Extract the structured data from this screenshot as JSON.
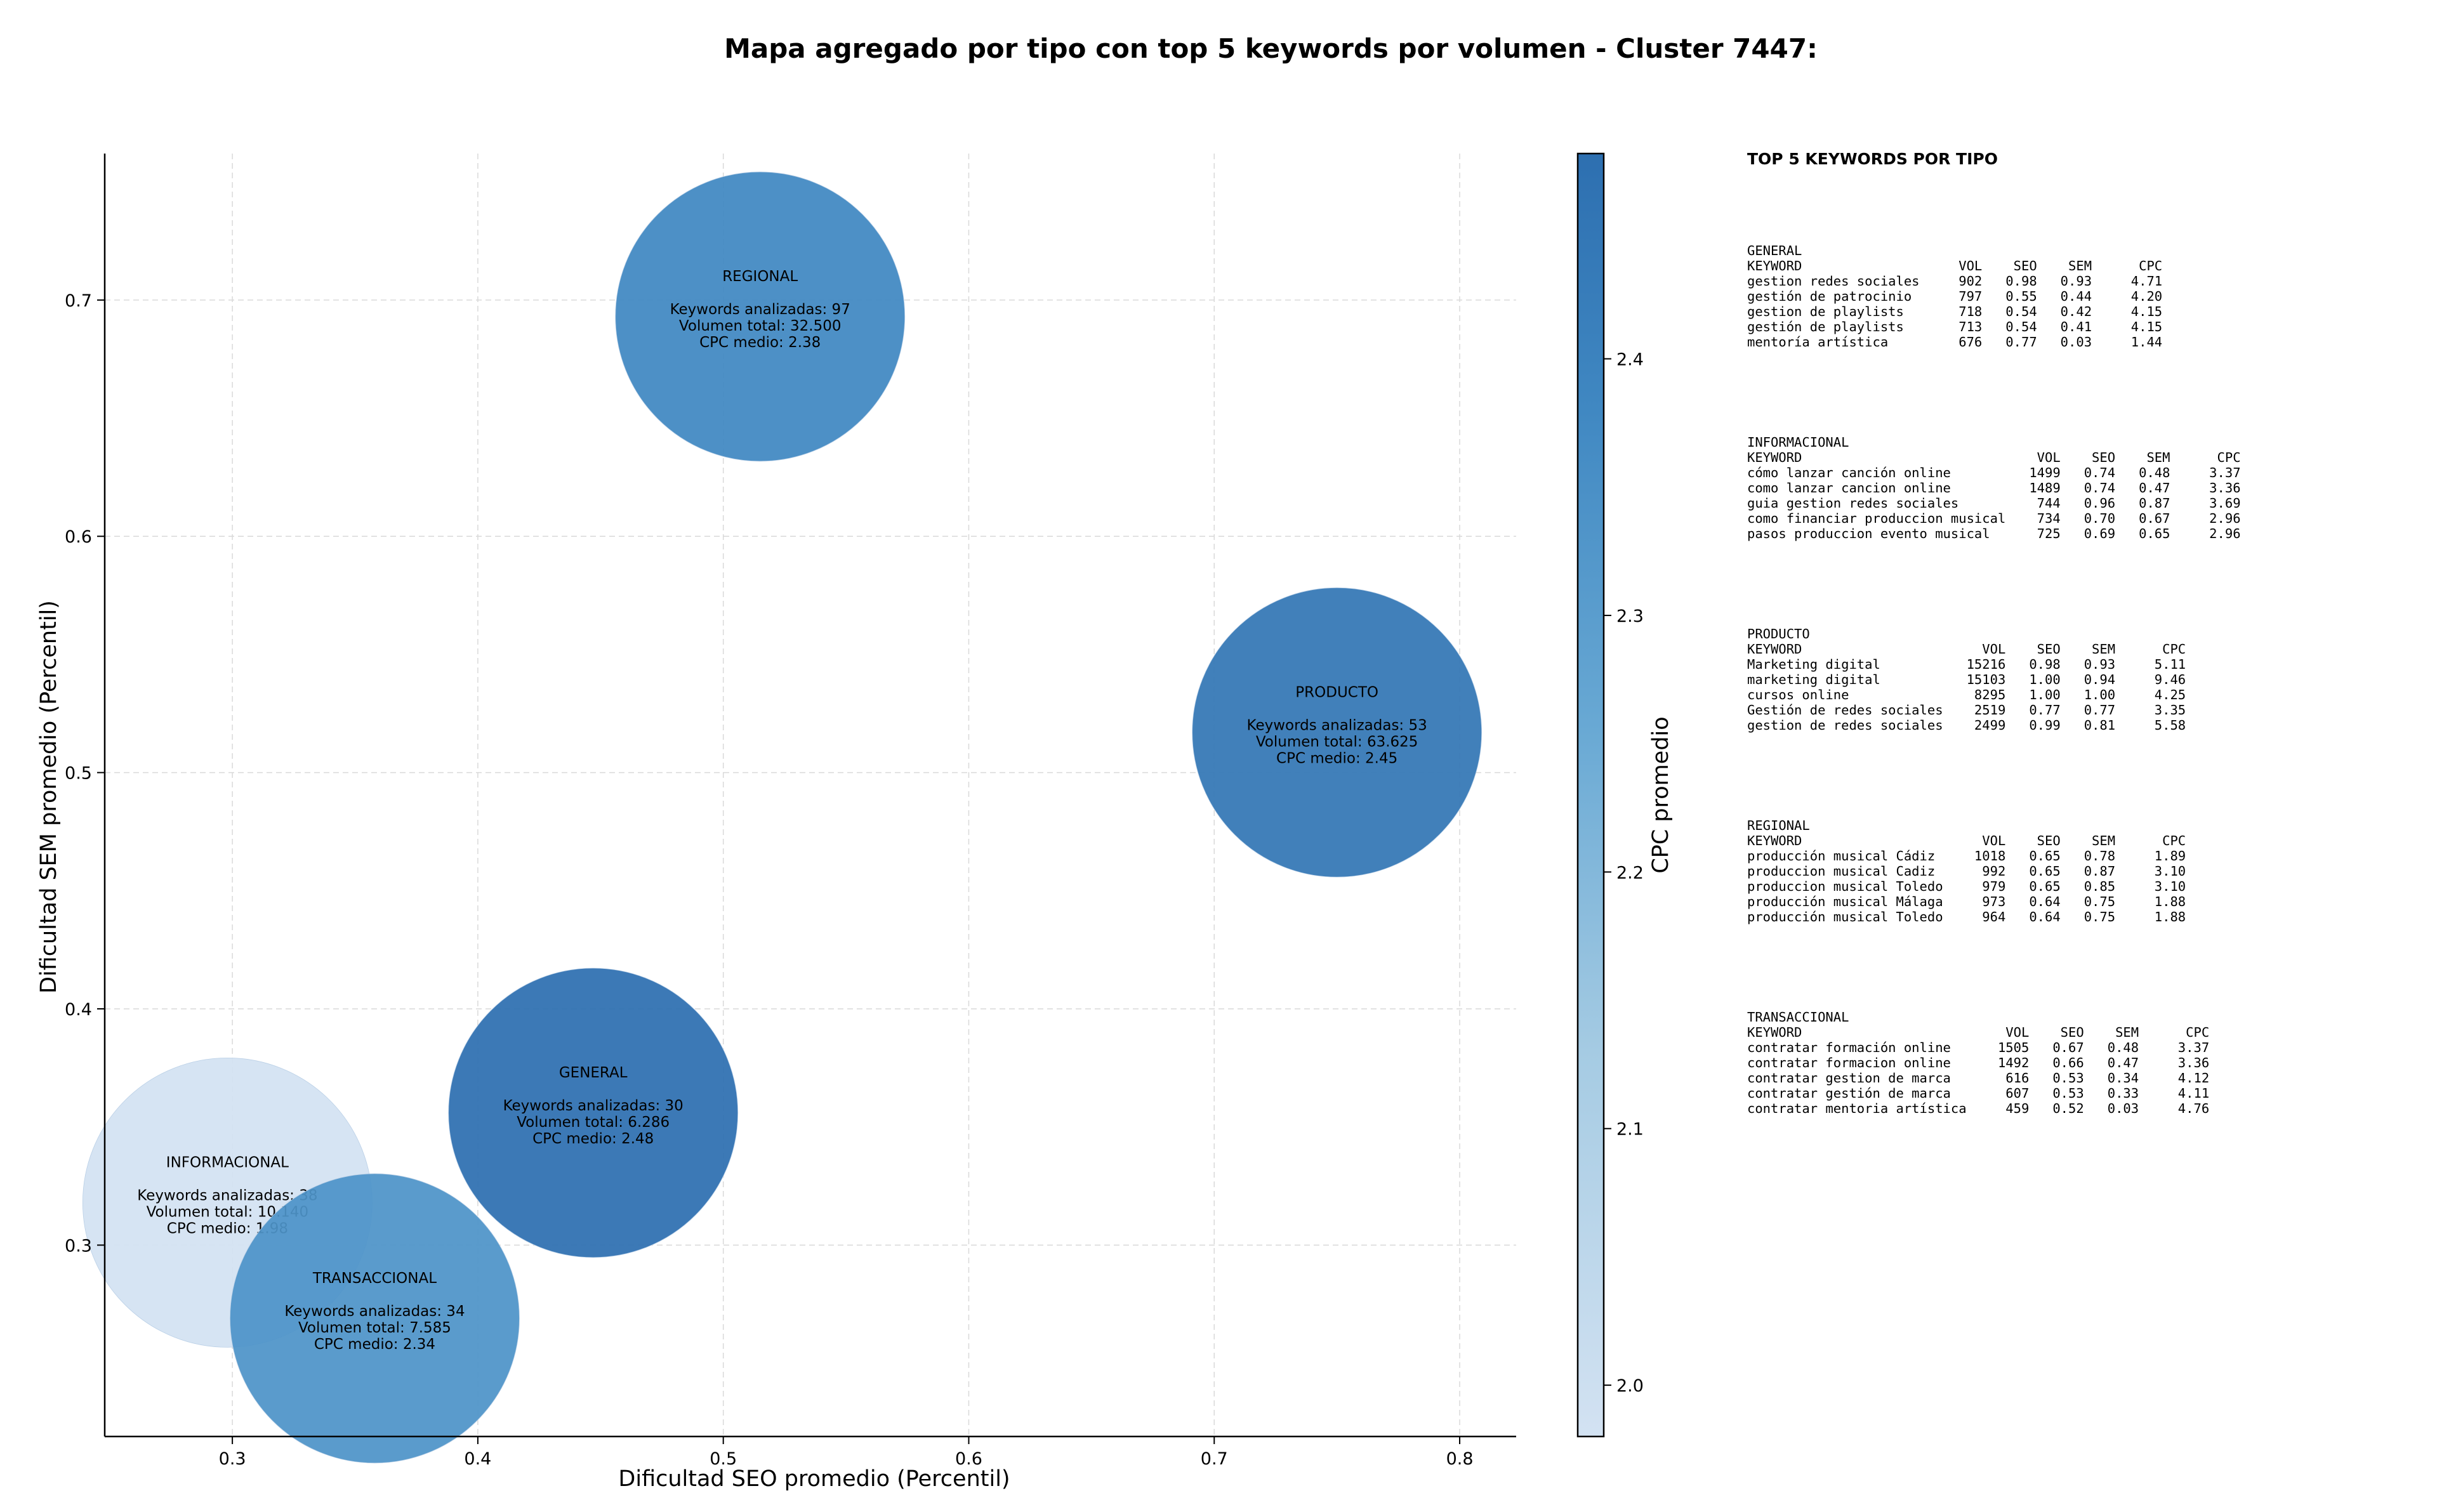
{
  "title": "Mapa agregado por tipo con top 5 keywords por volumen - Cluster 7447:",
  "chart_data": {
    "type": "scatter",
    "xlabel": "Dificultad SEO promedio (Percentil)",
    "ylabel": "Dificultad SEM promedio (Percentil)",
    "xlim": [
      0.248,
      0.823
    ],
    "ylim": [
      0.219,
      0.762
    ],
    "xticks": [
      0.3,
      0.4,
      0.5,
      0.6,
      0.7,
      0.8
    ],
    "yticks": [
      0.3,
      0.4,
      0.5,
      0.6,
      0.7
    ],
    "grid": true,
    "colorbar": {
      "label": "CPC promedio",
      "range": [
        1.98,
        2.48
      ],
      "ticks": [
        2.0,
        2.1,
        2.2,
        2.3,
        2.4
      ],
      "colormap": "Blues"
    },
    "points": [
      {
        "name": "REGIONAL",
        "x": 0.515,
        "y": 0.693,
        "keywords_label": "Keywords analizadas: 97",
        "volume_label": "Volumen total: 32.500",
        "cpc_label": "CPC medio: 2.38",
        "cpc": 2.38
      },
      {
        "name": "PRODUCTO",
        "x": 0.75,
        "y": 0.517,
        "keywords_label": "Keywords analizadas: 53",
        "volume_label": "Volumen total: 63.625",
        "cpc_label": "CPC medio: 2.45",
        "cpc": 2.45
      },
      {
        "name": "GENERAL",
        "x": 0.447,
        "y": 0.356,
        "keywords_label": "Keywords analizadas: 30",
        "volume_label": "Volumen total: 6.286",
        "cpc_label": "CPC medio: 2.48",
        "cpc": 2.48
      },
      {
        "name": "INFORMACIONAL",
        "x": 0.298,
        "y": 0.318,
        "keywords_label": "Keywords analizadas: 38",
        "volume_label": "Volumen total: 10.140",
        "cpc_label": "CPC medio: 1.98",
        "cpc": 1.98
      },
      {
        "name": "TRANSACCIONAL",
        "x": 0.358,
        "y": 0.269,
        "keywords_label": "Keywords analizadas: 34",
        "volume_label": "Volumen total: 7.585",
        "cpc_label": "CPC medio: 2.34",
        "cpc": 2.34
      }
    ]
  },
  "panel": {
    "title": "TOP 5 KEYWORDS POR TIPO",
    "sections": [
      {
        "name": "GENERAL",
        "lines": [
          "KEYWORD                    VOL    SEO    SEM      CPC",
          "gestion redes sociales     902   0.98   0.93     4.71",
          "gestión de patrocinio      797   0.55   0.44     4.20",
          "gestion de playlists       718   0.54   0.42     4.15",
          "gestión de playlists       713   0.54   0.41     4.15",
          "mentoría artística         676   0.77   0.03     1.44"
        ]
      },
      {
        "name": "INFORMACIONAL",
        "lines": [
          "KEYWORD                              VOL    SEO    SEM      CPC",
          "cómo lanzar canción online          1499   0.74   0.48     3.37",
          "como lanzar cancion online          1489   0.74   0.47     3.36",
          "guia gestion redes sociales          744   0.96   0.87     3.69",
          "como financiar produccion musical    734   0.70   0.67     2.96",
          "pasos produccion evento musical      725   0.69   0.65     2.96"
        ]
      },
      {
        "name": "PRODUCTO",
        "lines": [
          "KEYWORD                       VOL    SEO    SEM      CPC",
          "Marketing digital           15216   0.98   0.93     5.11",
          "marketing digital           15103   1.00   0.94     9.46",
          "cursos online                8295   1.00   1.00     4.25",
          "Gestión de redes sociales    2519   0.77   0.77     3.35",
          "gestion de redes sociales    2499   0.99   0.81     5.58"
        ]
      },
      {
        "name": "REGIONAL",
        "lines": [
          "KEYWORD                       VOL    SEO    SEM      CPC",
          "producción musical Cádiz     1018   0.65   0.78     1.89",
          "produccion musical Cadiz      992   0.65   0.87     3.10",
          "produccion musical Toledo     979   0.65   0.85     3.10",
          "producción musical Málaga     973   0.64   0.75     1.88",
          "producción musical Toledo     964   0.64   0.75     1.88"
        ]
      },
      {
        "name": "TRANSACCIONAL",
        "lines": [
          "KEYWORD                          VOL    SEO    SEM      CPC",
          "contratar formación online      1505   0.67   0.48     3.37",
          "contratar formacion online      1492   0.66   0.47     3.36",
          "contratar gestion de marca       616   0.53   0.34     4.12",
          "contratar gestión de marca       607   0.53   0.33     4.11",
          "contratar mentoria artística     459   0.52   0.03     4.76"
        ]
      }
    ]
  }
}
